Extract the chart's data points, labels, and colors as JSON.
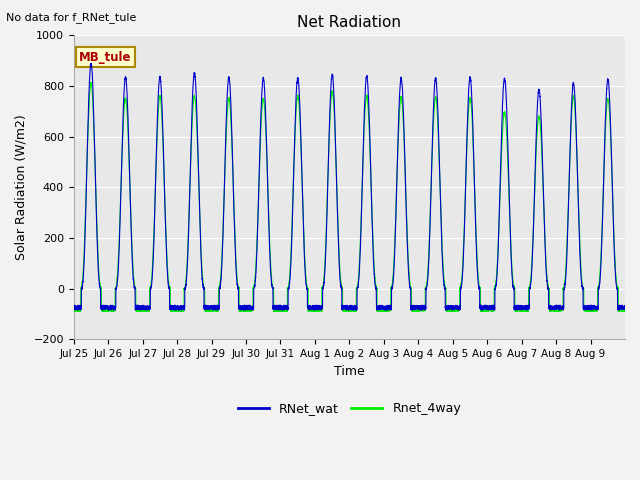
{
  "title": "Net Radiation",
  "xlabel": "Time",
  "ylabel": "Solar Radiation (W/m2)",
  "ylim": [
    -200,
    1000
  ],
  "bg_color": "#e8e8e8",
  "fig_color": "#f2f2f2",
  "line1_color": "#0000cc",
  "line2_color": "#00ee00",
  "line1_label": "RNet_wat",
  "line2_label": "Rnet_4way",
  "note_text": "No data for f_RNet_tule",
  "box_label": "MB_tule",
  "box_facecolor": "#ffffcc",
  "box_edgecolor": "#aa8800",
  "box_textcolor": "#aa0000",
  "num_days": 16,
  "pts_per_day": 288,
  "peak_values_blue": [
    890,
    835,
    835,
    850,
    835,
    830,
    830,
    845,
    840,
    830,
    830,
    835,
    830,
    785,
    810,
    825
  ],
  "peak_values_green": [
    810,
    750,
    760,
    760,
    750,
    750,
    760,
    780,
    760,
    755,
    755,
    755,
    695,
    680,
    760,
    750
  ],
  "night_blue": -80,
  "night_green": -85,
  "trough_blue_wiggle": 15,
  "trough_green_wiggle": 8,
  "yticks": [
    -200,
    0,
    200,
    400,
    600,
    800,
    1000
  ],
  "xtick_labels": [
    "Jul 25",
    "Jul 26",
    "Jul 27",
    "Jul 28",
    "Jul 29",
    "Jul 30",
    "Jul 31",
    "Aug 1",
    "Aug 2",
    "Aug 3",
    "Aug 4",
    "Aug 5",
    "Aug 6",
    "Aug 7",
    "Aug 8",
    "Aug 9"
  ]
}
